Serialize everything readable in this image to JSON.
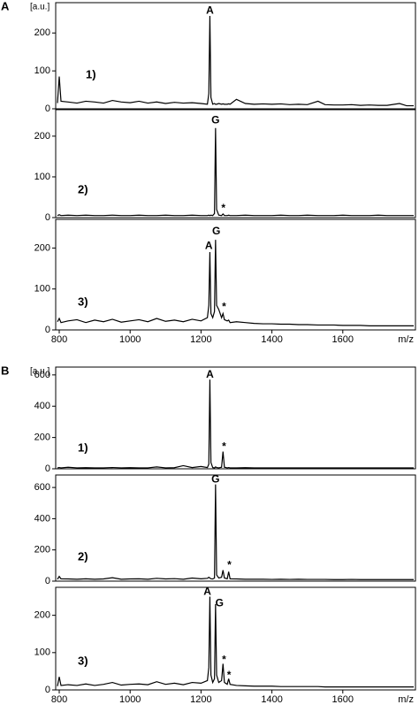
{
  "chart_data": [
    {
      "type": "line",
      "panel_label": "A",
      "ylabel": "[a.u.]",
      "label": "1)",
      "x": [
        795,
        800,
        805,
        825,
        850,
        875,
        900,
        925,
        950,
        975,
        1000,
        1025,
        1050,
        1075,
        1100,
        1125,
        1150,
        1175,
        1200,
        1218,
        1222,
        1225,
        1228,
        1233,
        1238,
        1241,
        1244,
        1250,
        1258,
        1262,
        1266,
        1274,
        1278,
        1282,
        1300,
        1325,
        1350,
        1375,
        1400,
        1425,
        1450,
        1475,
        1500,
        1530,
        1550,
        1575,
        1600,
        1625,
        1650,
        1675,
        1700,
        1725,
        1760,
        1780,
        1800
      ],
      "values": [
        15,
        85,
        20,
        18,
        15,
        20,
        18,
        15,
        22,
        18,
        16,
        20,
        15,
        18,
        14,
        17,
        15,
        16,
        14,
        12,
        40,
        245,
        30,
        12,
        14,
        12,
        12,
        14,
        12,
        13,
        12,
        12,
        13,
        12,
        25,
        14,
        12,
        13,
        12,
        13,
        11,
        12,
        11,
        20,
        11,
        10,
        10,
        11,
        9,
        10,
        9,
        9,
        14,
        8,
        8
      ],
      "color": "#000000",
      "xlim": [
        790,
        1805
      ],
      "ylim": [
        0,
        280
      ],
      "yticks": [
        0,
        100,
        200
      ],
      "annotations": [
        {
          "text": "A",
          "x": 1225,
          "y": 258
        }
      ]
    },
    {
      "type": "line",
      "label": "2)",
      "x": [
        795,
        800,
        805,
        825,
        850,
        875,
        900,
        925,
        950,
        975,
        1000,
        1025,
        1050,
        1075,
        1100,
        1125,
        1150,
        1175,
        1200,
        1218,
        1222,
        1225,
        1228,
        1233,
        1238,
        1241,
        1244,
        1250,
        1258,
        1262,
        1266,
        1274,
        1278,
        1282,
        1300,
        1325,
        1350,
        1375,
        1400,
        1425,
        1450,
        1475,
        1500,
        1530,
        1550,
        1575,
        1600,
        1625,
        1650,
        1675,
        1700,
        1725,
        1760,
        1780,
        1800
      ],
      "values": [
        5,
        7,
        5,
        6,
        5,
        6,
        5,
        5,
        6,
        5,
        5,
        6,
        5,
        5,
        6,
        5,
        5,
        6,
        5,
        5,
        6,
        5,
        6,
        5,
        10,
        220,
        20,
        6,
        5,
        9,
        5,
        5,
        6,
        5,
        5,
        6,
        5,
        5,
        5,
        6,
        5,
        5,
        6,
        5,
        5,
        5,
        6,
        5,
        5,
        5,
        6,
        5,
        5,
        5,
        5
      ],
      "color": "#000000",
      "xlim": [
        790,
        1805
      ],
      "ylim": [
        0,
        265
      ],
      "yticks": [
        0,
        100,
        200
      ],
      "annotations": [
        {
          "text": "G",
          "x": 1241,
          "y": 238
        },
        {
          "text": "*",
          "x": 1263,
          "y": 22
        }
      ]
    },
    {
      "type": "line",
      "label": "3)",
      "x": [
        795,
        800,
        805,
        825,
        850,
        875,
        900,
        925,
        950,
        975,
        1000,
        1025,
        1050,
        1075,
        1100,
        1125,
        1150,
        1175,
        1200,
        1218,
        1222,
        1225,
        1228,
        1233,
        1238,
        1241,
        1244,
        1250,
        1258,
        1262,
        1266,
        1274,
        1278,
        1282,
        1300,
        1325,
        1350,
        1375,
        1400,
        1425,
        1450,
        1475,
        1500,
        1530,
        1550,
        1575,
        1600,
        1625,
        1650,
        1675,
        1700,
        1725,
        1760,
        1780,
        1800
      ],
      "values": [
        20,
        28,
        18,
        22,
        25,
        18,
        24,
        20,
        26,
        19,
        22,
        25,
        20,
        28,
        21,
        24,
        20,
        26,
        22,
        30,
        60,
        190,
        40,
        30,
        45,
        220,
        60,
        50,
        30,
        40,
        25,
        22,
        24,
        18,
        20,
        18,
        16,
        15,
        15,
        14,
        14,
        13,
        13,
        12,
        12,
        12,
        11,
        11,
        11,
        10,
        10,
        10,
        10,
        10,
        10
      ],
      "color": "#000000",
      "xlim": [
        790,
        1805
      ],
      "ylim": [
        0,
        270
      ],
      "yticks": [
        0,
        100,
        200
      ],
      "xticks": [
        800,
        1000,
        1200,
        1400,
        1600
      ],
      "xlabel": "m/z",
      "annotations": [
        {
          "text": "A",
          "x": 1222,
          "y": 205
        },
        {
          "text": "G",
          "x": 1243,
          "y": 240
        },
        {
          "text": "*",
          "x": 1265,
          "y": 55
        }
      ]
    },
    {
      "type": "line",
      "panel_label": "B",
      "ylabel": "[a.u.]",
      "label": "1)",
      "x": [
        795,
        800,
        805,
        825,
        850,
        875,
        900,
        925,
        950,
        975,
        1000,
        1025,
        1050,
        1075,
        1100,
        1125,
        1150,
        1175,
        1200,
        1218,
        1222,
        1225,
        1228,
        1233,
        1238,
        1241,
        1244,
        1250,
        1258,
        1262,
        1266,
        1274,
        1278,
        1282,
        1300,
        1325,
        1350,
        1375,
        1400,
        1425,
        1450,
        1475,
        1500,
        1530,
        1550,
        1575,
        1600,
        1625,
        1650,
        1675,
        1700,
        1725,
        1760,
        1780,
        1800
      ],
      "values": [
        6,
        8,
        6,
        10,
        6,
        7,
        6,
        6,
        8,
        6,
        7,
        6,
        6,
        12,
        6,
        7,
        20,
        8,
        15,
        8,
        30,
        570,
        40,
        8,
        6,
        12,
        8,
        6,
        10,
        110,
        10,
        6,
        8,
        6,
        6,
        7,
        6,
        6,
        6,
        6,
        6,
        6,
        6,
        6,
        6,
        6,
        6,
        6,
        6,
        6,
        6,
        6,
        6,
        6,
        6
      ],
      "color": "#000000",
      "xlim": [
        790,
        1805
      ],
      "ylim": [
        0,
        650
      ],
      "yticks": [
        0,
        200,
        400,
        600
      ],
      "annotations": [
        {
          "text": "A",
          "x": 1225,
          "y": 600
        },
        {
          "text": "*",
          "x": 1265,
          "y": 140
        }
      ]
    },
    {
      "type": "line",
      "label": "2)",
      "x": [
        795,
        800,
        805,
        825,
        850,
        875,
        900,
        925,
        950,
        975,
        1000,
        1025,
        1050,
        1075,
        1100,
        1125,
        1150,
        1175,
        1200,
        1218,
        1222,
        1225,
        1228,
        1233,
        1238,
        1241,
        1244,
        1250,
        1258,
        1262,
        1266,
        1274,
        1278,
        1282,
        1300,
        1325,
        1350,
        1375,
        1400,
        1425,
        1450,
        1475,
        1500,
        1530,
        1550,
        1575,
        1600,
        1625,
        1650,
        1675,
        1700,
        1725,
        1760,
        1780,
        1800
      ],
      "values": [
        12,
        30,
        15,
        14,
        12,
        15,
        12,
        14,
        22,
        12,
        14,
        15,
        12,
        18,
        14,
        16,
        12,
        20,
        15,
        18,
        25,
        20,
        15,
        14,
        20,
        620,
        40,
        20,
        25,
        70,
        20,
        15,
        60,
        15,
        14,
        12,
        12,
        12,
        11,
        12,
        11,
        12,
        11,
        11,
        11,
        10,
        10,
        11,
        10,
        10,
        10,
        10,
        10,
        10,
        10
      ],
      "color": "#000000",
      "xlim": [
        790,
        1805
      ],
      "ylim": [
        0,
        680
      ],
      "yticks": [
        0,
        200,
        400,
        600
      ],
      "annotations": [
        {
          "text": "G",
          "x": 1241,
          "y": 650
        },
        {
          "text": "*",
          "x": 1280,
          "y": 100
        }
      ]
    },
    {
      "type": "line",
      "label": "3)",
      "x": [
        795,
        800,
        805,
        825,
        850,
        875,
        900,
        925,
        950,
        975,
        1000,
        1025,
        1050,
        1075,
        1100,
        1125,
        1150,
        1175,
        1200,
        1218,
        1222,
        1225,
        1228,
        1233,
        1238,
        1241,
        1244,
        1250,
        1258,
        1262,
        1266,
        1274,
        1278,
        1282,
        1300,
        1325,
        1350,
        1375,
        1400,
        1425,
        1450,
        1475,
        1500,
        1530,
        1550,
        1575,
        1600,
        1625,
        1650,
        1675,
        1700,
        1725,
        1760,
        1780,
        1800
      ],
      "values": [
        10,
        35,
        12,
        14,
        12,
        16,
        12,
        15,
        20,
        13,
        15,
        16,
        14,
        22,
        15,
        18,
        14,
        20,
        18,
        25,
        60,
        250,
        40,
        20,
        30,
        230,
        40,
        20,
        25,
        70,
        20,
        15,
        30,
        15,
        12,
        11,
        10,
        10,
        10,
        9,
        9,
        9,
        9,
        9,
        8,
        8,
        8,
        8,
        8,
        8,
        8,
        8,
        8,
        8,
        8
      ],
      "color": "#000000",
      "xlim": [
        790,
        1805
      ],
      "ylim": [
        0,
        275
      ],
      "yticks": [
        0,
        100,
        200
      ],
      "xticks": [
        800,
        1000,
        1200,
        1400,
        1600
      ],
      "xlabel": "m/z",
      "annotations": [
        {
          "text": "A",
          "x": 1218,
          "y": 262
        },
        {
          "text": "G",
          "x": 1252,
          "y": 232
        },
        {
          "text": "*",
          "x": 1265,
          "y": 80
        },
        {
          "text": "*",
          "x": 1279,
          "y": 38
        }
      ]
    }
  ]
}
